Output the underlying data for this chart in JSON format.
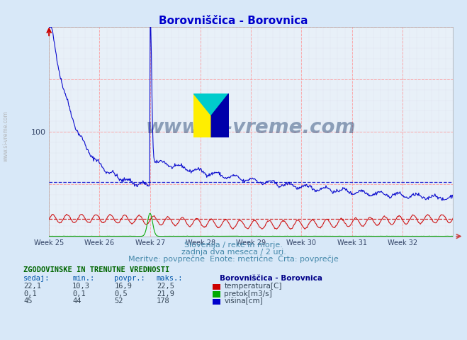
{
  "title": "Borovniščica - Borovnica",
  "title_color": "#0000cc",
  "bg_color": "#d8e8f8",
  "plot_bg_color": "#e8f0f8",
  "grid_color_major": "#ff9999",
  "grid_color_minor": "#ddddee",
  "xlabel_weeks": [
    "Week 25",
    "Week 26",
    "Week 27",
    "Week 28",
    "Week 29",
    "Week 30",
    "Week 31",
    "Week 32"
  ],
  "week_positions": [
    0,
    7,
    14,
    21,
    28,
    35,
    42,
    49
  ],
  "ylabel_val": "100",
  "ylim": [
    0,
    200
  ],
  "xlim": [
    0,
    56
  ],
  "num_points": 672,
  "watermark": "www.si-vreme.com",
  "watermark_color": "#1a3a6a",
  "sub_text1": "Slovenija / reke in morje.",
  "sub_text2": "zadnja dva meseca / 2 uri.",
  "sub_text3": "Meritve: povprečne  Enote: metrične  Črta: povprečje",
  "sub_text_color": "#4488aa",
  "table_header": "ZGODOVINSKE IN TRENUTNE VREDNOSTI",
  "table_header_color": "#006600",
  "col_headers": [
    "sedaj:",
    "min.:",
    "povpr.:",
    "maks.:"
  ],
  "col_header_color": "#0055aa",
  "rows": [
    {
      "sedaj": "22,1",
      "min": "10,3",
      "povpr": "16,9",
      "maks": "22,5",
      "label": "temperatura[C]",
      "color": "#cc0000"
    },
    {
      "sedaj": "0,1",
      "min": "0,1",
      "povpr": "0,5",
      "maks": "21,9",
      "label": "pretok[m3/s]",
      "color": "#00aa00"
    },
    {
      "sedaj": "45",
      "min": "44",
      "povpr": "52",
      "maks": "178",
      "label": "višina[cm]",
      "color": "#0000cc"
    }
  ],
  "station_label": "Borovniščica - Borovnica",
  "station_label_color": "#000088",
  "avg_temp": 16.9,
  "avg_visina": 52,
  "sidebar_text": "www.si-vreme.com",
  "sidebar_color": "#aaaaaa",
  "line_colors": [
    "#cc0000",
    "#00aa00",
    "#0000cc"
  ],
  "avg_line_colors": [
    "#cc0000",
    "#0000cc"
  ]
}
